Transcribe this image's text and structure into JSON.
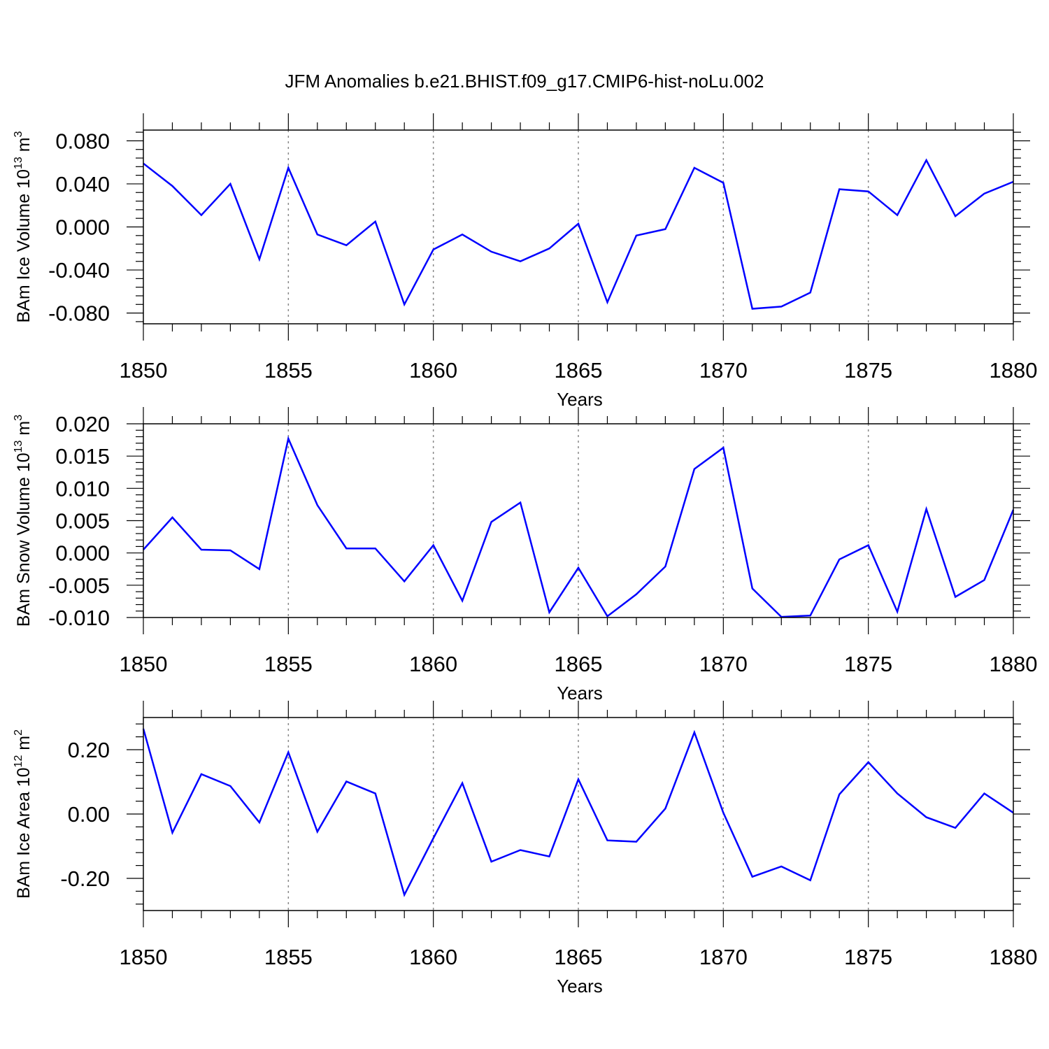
{
  "title": "JFM Anomalies b.e21.BHIST.f09_g17.CMIP6-hist-noLu.002",
  "line_color": "#0000ff",
  "chart_data": [
    {
      "type": "line",
      "ylabel": "BAm Ice Volume 10",
      "ylabel_exp": "13",
      "ylabel_unit": " m",
      "ylabel_unit_exp": "3",
      "xlabel": "Years",
      "xlim": [
        1850,
        1880
      ],
      "ylim": [
        -0.09,
        0.09
      ],
      "yticks": [
        -0.08,
        -0.04,
        0.0,
        0.04,
        0.08
      ],
      "ytick_labels": [
        "-0.080",
        "-0.040",
        "0.000",
        "0.040",
        "0.080"
      ],
      "xticks": [
        1850,
        1855,
        1860,
        1865,
        1870,
        1875,
        1880
      ],
      "xtick_labels": [
        "1850",
        "1855",
        "1860",
        "1865",
        "1870",
        "1875",
        "1880"
      ],
      "x": [
        1850,
        1851,
        1852,
        1853,
        1854,
        1855,
        1856,
        1857,
        1858,
        1859,
        1860,
        1861,
        1862,
        1863,
        1864,
        1865,
        1866,
        1867,
        1868,
        1869,
        1870,
        1871,
        1872,
        1873,
        1874,
        1875,
        1876,
        1877,
        1878,
        1879,
        1880
      ],
      "values": [
        0.059,
        0.038,
        0.011,
        0.04,
        -0.03,
        0.055,
        -0.007,
        -0.017,
        0.005,
        -0.072,
        -0.021,
        -0.007,
        -0.023,
        -0.032,
        -0.02,
        0.003,
        -0.07,
        -0.008,
        -0.002,
        0.055,
        0.041,
        -0.076,
        -0.074,
        -0.061,
        0.035,
        0.033,
        0.011,
        0.062,
        0.01,
        0.031,
        0.042
      ]
    },
    {
      "type": "line",
      "ylabel": "BAm Snow Volume 10",
      "ylabel_exp": "13",
      "ylabel_unit": " m",
      "ylabel_unit_exp": "3",
      "xlabel": "Years",
      "xlim": [
        1850,
        1880
      ],
      "ylim": [
        -0.01,
        0.02
      ],
      "yticks": [
        -0.01,
        -0.005,
        0.0,
        0.005,
        0.01,
        0.015,
        0.02
      ],
      "ytick_labels": [
        "-0.010",
        "-0.005",
        "0.000",
        "0.005",
        "0.010",
        "0.015",
        "0.020"
      ],
      "xticks": [
        1850,
        1855,
        1860,
        1865,
        1870,
        1875,
        1880
      ],
      "xtick_labels": [
        "1850",
        "1855",
        "1860",
        "1865",
        "1870",
        "1875",
        "1880"
      ],
      "x": [
        1850,
        1851,
        1852,
        1853,
        1854,
        1855,
        1856,
        1857,
        1858,
        1859,
        1860,
        1861,
        1862,
        1863,
        1864,
        1865,
        1866,
        1867,
        1868,
        1869,
        1870,
        1871,
        1872,
        1873,
        1874,
        1875,
        1876,
        1877,
        1878,
        1879,
        1880
      ],
      "values": [
        0.0005,
        0.0055,
        0.0005,
        0.0004,
        -0.0025,
        0.0177,
        0.0074,
        0.0007,
        0.0007,
        -0.0044,
        0.0012,
        -0.0074,
        0.0048,
        0.0078,
        -0.0092,
        -0.0023,
        -0.0098,
        -0.0064,
        -0.0021,
        0.013,
        0.0163,
        -0.0055,
        -0.0099,
        -0.0097,
        -0.001,
        0.0012,
        -0.0091,
        0.0068,
        -0.0068,
        -0.0042,
        0.0067
      ]
    },
    {
      "type": "line",
      "ylabel": "BAm Ice Area 10",
      "ylabel_exp": "12",
      "ylabel_unit": " m",
      "ylabel_unit_exp": "2",
      "xlabel": "Years",
      "xlim": [
        1850,
        1880
      ],
      "ylim": [
        -0.3,
        0.3
      ],
      "yticks": [
        -0.2,
        0.0,
        0.2
      ],
      "ytick_labels": [
        "-0.20",
        "0.00",
        "0.20"
      ],
      "xticks": [
        1850,
        1855,
        1860,
        1865,
        1870,
        1875,
        1880
      ],
      "xtick_labels": [
        "1850",
        "1855",
        "1860",
        "1865",
        "1870",
        "1875",
        "1880"
      ],
      "x": [
        1850,
        1851,
        1852,
        1853,
        1854,
        1855,
        1856,
        1857,
        1858,
        1859,
        1860,
        1861,
        1862,
        1863,
        1864,
        1865,
        1866,
        1867,
        1868,
        1869,
        1870,
        1871,
        1872,
        1873,
        1874,
        1875,
        1876,
        1877,
        1878,
        1879,
        1880
      ],
      "values": [
        0.265,
        -0.058,
        0.124,
        0.087,
        -0.026,
        0.192,
        -0.055,
        0.101,
        0.064,
        -0.251,
        -0.075,
        0.096,
        -0.148,
        -0.112,
        -0.132,
        0.108,
        -0.082,
        -0.086,
        0.017,
        0.254,
        0.004,
        -0.195,
        -0.163,
        -0.206,
        0.061,
        0.161,
        0.064,
        -0.01,
        -0.043,
        0.064,
        0.004
      ]
    }
  ]
}
